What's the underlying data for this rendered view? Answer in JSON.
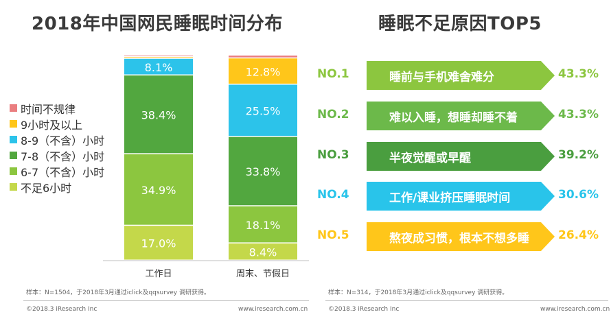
{
  "left_panel": {
    "title": "2018年中国网民睡眠时间分布",
    "footnote": "样本：N=1504，于2018年3月通过iclick及qqsurvey 调研获得。",
    "copyright": "©2018.3 iResearch Inc",
    "website": "www.iresearch.com.cn"
  },
  "right_panel": {
    "title": "睡眠不足原因TOP5",
    "footnote": "样本：N=314，于2018年3月通过iclick及qqsurvey 调研获得。",
    "copyright": "©2018.3 iResearch Inc",
    "website": "www.iresearch.com.cn",
    "items": [
      {
        "rank": "NO.1",
        "label": "睡前与手机难舍难分",
        "value": "43.3%",
        "color": "#8cc63f",
        "rank_color": "#8cc63f"
      },
      {
        "rank": "NO.2",
        "label": "难以入睡，想睡却睡不着",
        "value": "43.3%",
        "color": "#6cb94a",
        "rank_color": "#6cb94a"
      },
      {
        "rank": "NO.3",
        "label": "半夜觉醒或早醒",
        "value": "39.2%",
        "color": "#4a9e3f",
        "rank_color": "#4a9e3f"
      },
      {
        "rank": "NO.4",
        "label": "工作/课业挤压睡眠时间",
        "value": "30.6%",
        "color": "#29c4ea",
        "rank_color": "#29c4ea"
      },
      {
        "rank": "NO.5",
        "label": "熬夜成习惯，根本不想多睡",
        "value": "26.4%",
        "color": "#ffc61a",
        "rank_color": "#ffc61a"
      }
    ]
  },
  "chart_data": {
    "type": "bar",
    "stacked": true,
    "normalized": true,
    "title": "2018年中国网民睡眠时间分布",
    "categories": [
      "工作日",
      "周末、节假日"
    ],
    "series": [
      {
        "name": "不足6小时",
        "values": [
          17.0,
          8.4
        ],
        "labels": [
          "17.0%",
          "8.4%"
        ],
        "color": "#c4d84a"
      },
      {
        "name": "6-7（不含）小时",
        "values": [
          34.9,
          18.1
        ],
        "labels": [
          "34.9%",
          "18.1%"
        ],
        "color": "#8cc63f"
      },
      {
        "name": "7-8（不含）小时",
        "values": [
          38.4,
          33.8
        ],
        "labels": [
          "38.4%",
          "33.8%"
        ],
        "color": "#52a73f"
      },
      {
        "name": "8-9（不含）小时",
        "values": [
          8.1,
          25.5
        ],
        "labels": [
          "8.1%",
          "25.5%"
        ],
        "color": "#2cc3ea"
      },
      {
        "name": "9小时及以上",
        "values": [
          0.8,
          12.8
        ],
        "labels": [
          "",
          "12.8%"
        ],
        "color": "#ffc61a"
      },
      {
        "name": "时间不规律",
        "values": [
          0.8,
          1.4
        ],
        "labels": [
          "",
          ""
        ],
        "color": "#ea7e80"
      }
    ],
    "legend_order": [
      "时间不规律",
      "9小时及以上",
      "8-9（不含）小时",
      "7-8（不含）小时",
      "6-7（不含）小时",
      "不足6小时"
    ],
    "ylim": [
      0,
      100
    ]
  }
}
